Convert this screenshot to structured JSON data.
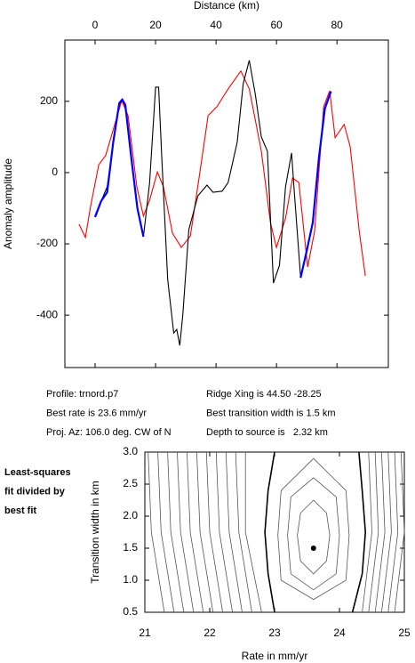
{
  "chart_data": [
    {
      "type": "line",
      "xlabel": "Distance (km)",
      "ylabel": "Anomaly amplitude",
      "xlim": [
        -10,
        97
      ],
      "ylim": [
        -547,
        372
      ],
      "xticks": [
        0,
        20,
        40,
        60,
        80
      ],
      "yticks": [
        -400,
        -200,
        0,
        200
      ],
      "series": [
        {
          "name": "observed",
          "color": "#ff0000",
          "x": [
            -5.3,
            -3.2,
            -1.5,
            1.2,
            3.5,
            6.5,
            8.8,
            10.9,
            13.8,
            16,
            18,
            20.6,
            22.6,
            25.6,
            28.5,
            31.5,
            34.4,
            37.4,
            40.3,
            44,
            48.2,
            51,
            55,
            58,
            60,
            63,
            65.3,
            67.4,
            70.3,
            72.6,
            75.6,
            77.6,
            79.4,
            82.4,
            84.4,
            87.4,
            89.4
          ],
          "values": [
            -145,
            -182,
            -95,
            22,
            48,
            135,
            202,
            160,
            -40,
            -122,
            -78,
            2,
            -40,
            -170,
            -210,
            -178,
            -15,
            160,
            185,
            235,
            285,
            235,
            60,
            -140,
            -210,
            -128,
            -15,
            -28,
            -265,
            -165,
            185,
            230,
            98,
            135,
            72,
            -165,
            -290
          ]
        },
        {
          "name": "model",
          "color": "#000000",
          "x": [
            0,
            2,
            4,
            6,
            8,
            9,
            10,
            12,
            14,
            16,
            18,
            20,
            21,
            22,
            24,
            26,
            27,
            28,
            29,
            31,
            34,
            37,
            39,
            42,
            44,
            47,
            49,
            51,
            53,
            55,
            57,
            59,
            61,
            63,
            65,
            66,
            68,
            70,
            72,
            74,
            76,
            78
          ],
          "values": [
            -120,
            -80,
            -40,
            80,
            190,
            205,
            190,
            40,
            -100,
            -180,
            -30,
            240,
            240,
            50,
            -300,
            -450,
            -440,
            -485,
            -400,
            -160,
            -65,
            -35,
            -55,
            -52,
            -28,
            85,
            250,
            315,
            220,
            100,
            60,
            -310,
            -260,
            -40,
            55,
            -65,
            -295,
            -220,
            -140,
            40,
            180,
            228
          ]
        },
        {
          "name": "fit window",
          "color": "#0000ff",
          "x": [
            0,
            2,
            4,
            6,
            8,
            9,
            10,
            12,
            14,
            16,
            null,
            68,
            70,
            72,
            74,
            76,
            78
          ],
          "values": [
            -125,
            -80,
            -55,
            85,
            195,
            205,
            190,
            40,
            -100,
            -180,
            null,
            -295,
            -220,
            -140,
            40,
            180,
            228
          ]
        }
      ]
    },
    {
      "type": "contour",
      "xlabel": "Rate in mm/yr",
      "ylabel": "Transition width in km",
      "xlim": [
        21,
        25
      ],
      "ylim": [
        0.5,
        3.0
      ],
      "xticks": [
        21,
        22,
        23,
        24,
        25
      ],
      "yticks": [
        0.5,
        {
          "value": 1,
          "label": "1.0"
        },
        1.5,
        {
          "value": 2,
          "label": "2.0"
        },
        2.5,
        {
          "value": 3,
          "label": "3.0"
        }
      ],
      "color": "#555555",
      "bold_color": "#000000",
      "point": {
        "x": 23.6,
        "y": 1.5
      },
      "contours": [
        {
          "x": [
            23.6,
            23.8,
            23.85,
            23.8,
            23.6,
            23.4,
            23.35,
            23.4,
            23.6
          ],
          "y": [
            2.25,
            2.05,
            1.7,
            1.3,
            1.1,
            1.3,
            1.7,
            2.05,
            2.25
          ]
        },
        {
          "x": [
            23.6,
            23.95,
            24.0,
            23.95,
            23.6,
            23.25,
            23.2,
            23.25,
            23.6
          ],
          "y": [
            2.6,
            2.3,
            1.7,
            1.1,
            0.85,
            1.1,
            1.7,
            2.3,
            2.6
          ]
        },
        {
          "x": [
            23.6,
            24.1,
            24.15,
            24.1,
            23.6,
            23.1,
            23.05,
            23.1,
            23.6
          ],
          "y": [
            2.9,
            2.4,
            1.7,
            1.0,
            0.7,
            1.0,
            1.7,
            2.4,
            2.9
          ]
        },
        {
          "x": [
            23.0,
            22.9,
            22.85,
            22.9,
            23.0
          ],
          "y": [
            3.0,
            2.4,
            1.75,
            1.1,
            0.5
          ],
          "bold": true
        },
        {
          "x": [
            24.3,
            24.35,
            24.4,
            24.35,
            24.2
          ],
          "y": [
            3.0,
            2.4,
            1.75,
            1.1,
            0.5
          ],
          "bold": true
        },
        {
          "x": [
            21.05,
            21.1,
            21.3
          ],
          "y": [
            3.0,
            1.75,
            0.5
          ]
        },
        {
          "x": [
            21.2,
            21.25,
            21.45
          ],
          "y": [
            3.0,
            1.75,
            0.5
          ]
        },
        {
          "x": [
            21.35,
            21.4,
            21.6
          ],
          "y": [
            3.0,
            1.75,
            0.5
          ]
        },
        {
          "x": [
            21.5,
            21.55,
            21.75
          ],
          "y": [
            3.0,
            1.75,
            0.5
          ]
        },
        {
          "x": [
            21.65,
            21.7,
            21.9
          ],
          "y": [
            3.0,
            1.75,
            0.5
          ]
        },
        {
          "x": [
            21.8,
            21.85,
            22.05
          ],
          "y": [
            3.0,
            1.75,
            0.5
          ]
        },
        {
          "x": [
            21.95,
            22.0,
            22.2
          ],
          "y": [
            3.0,
            1.75,
            0.5
          ]
        },
        {
          "x": [
            22.1,
            22.15,
            22.35
          ],
          "y": [
            3.0,
            1.75,
            0.5
          ]
        },
        {
          "x": [
            22.25,
            22.3,
            22.5
          ],
          "y": [
            3.0,
            1.75,
            0.5
          ]
        },
        {
          "x": [
            22.4,
            22.45,
            22.65
          ],
          "y": [
            3.0,
            1.75,
            0.5
          ]
        },
        {
          "x": [
            22.55,
            22.55,
            22.8
          ],
          "y": [
            3.0,
            1.75,
            0.5
          ]
        },
        {
          "x": [
            24.45,
            24.5,
            24.35
          ],
          "y": [
            3.0,
            1.75,
            0.5
          ]
        },
        {
          "x": [
            24.55,
            24.6,
            24.45
          ],
          "y": [
            3.0,
            1.75,
            0.5
          ]
        },
        {
          "x": [
            24.65,
            24.7,
            24.55
          ],
          "y": [
            3.0,
            1.75,
            0.5
          ]
        },
        {
          "x": [
            24.75,
            24.8,
            24.65
          ],
          "y": [
            3.0,
            1.75,
            0.5
          ]
        },
        {
          "x": [
            24.85,
            24.9,
            24.75
          ],
          "y": [
            3.0,
            1.75,
            0.5
          ]
        },
        {
          "x": [
            24.95,
            25.0,
            24.85
          ],
          "y": [
            3.0,
            1.75,
            0.5
          ]
        }
      ]
    }
  ],
  "info": [
    "Profile: trnord.p7",
    "Ridge Xing is 44.50 -28.25",
    "Best rate is 23.6 mm/yr",
    "Best transition width is 1.5 km",
    "Proj. Az: 106.0 deg. CW of N",
    "Depth to source is   2.32 km"
  ],
  "side_label": [
    "Least-squares",
    "fit divided by",
    "best fit"
  ]
}
